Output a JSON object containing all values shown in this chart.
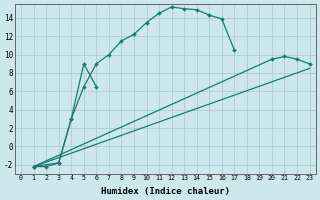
{
  "xlabel": "Humidex (Indice chaleur)",
  "background_color": "#cce8ec",
  "grid_color": "#aacdd4",
  "line_color": "#1a7a6e",
  "xlim": [
    -0.5,
    23.5
  ],
  "ylim": [
    -3.0,
    15.5
  ],
  "xticks": [
    0,
    1,
    2,
    3,
    4,
    5,
    6,
    7,
    8,
    9,
    10,
    11,
    12,
    13,
    14,
    15,
    16,
    17,
    18,
    19,
    20,
    21,
    22,
    23
  ],
  "yticks": [
    -2,
    0,
    2,
    4,
    6,
    8,
    10,
    12,
    14
  ],
  "curve_main_x": [
    1,
    2,
    3,
    4,
    5,
    6,
    7,
    8,
    9,
    10,
    11,
    12,
    13,
    14,
    15,
    16,
    17
  ],
  "curve_main_y": [
    -2.2,
    -2.2,
    -1.8,
    3.0,
    6.5,
    9.0,
    10.0,
    11.5,
    12.2,
    13.5,
    14.5,
    15.2,
    15.0,
    14.9,
    14.3,
    13.9,
    10.5
  ],
  "curve_zigzag_x": [
    1,
    3,
    4,
    5,
    6
  ],
  "curve_zigzag_y": [
    -2.2,
    -1.8,
    3.0,
    9.0,
    6.5
  ],
  "curve_line1_x": [
    1,
    23
  ],
  "curve_line1_y": [
    -2.2,
    8.5
  ],
  "curve_line2_x": [
    1,
    23
  ],
  "curve_line2_y": [
    -2.2,
    9.0
  ],
  "curve_end_x": [
    1,
    20,
    21,
    22,
    23
  ],
  "curve_end_y": [
    -2.2,
    9.5,
    9.8,
    9.5,
    9.0
  ]
}
